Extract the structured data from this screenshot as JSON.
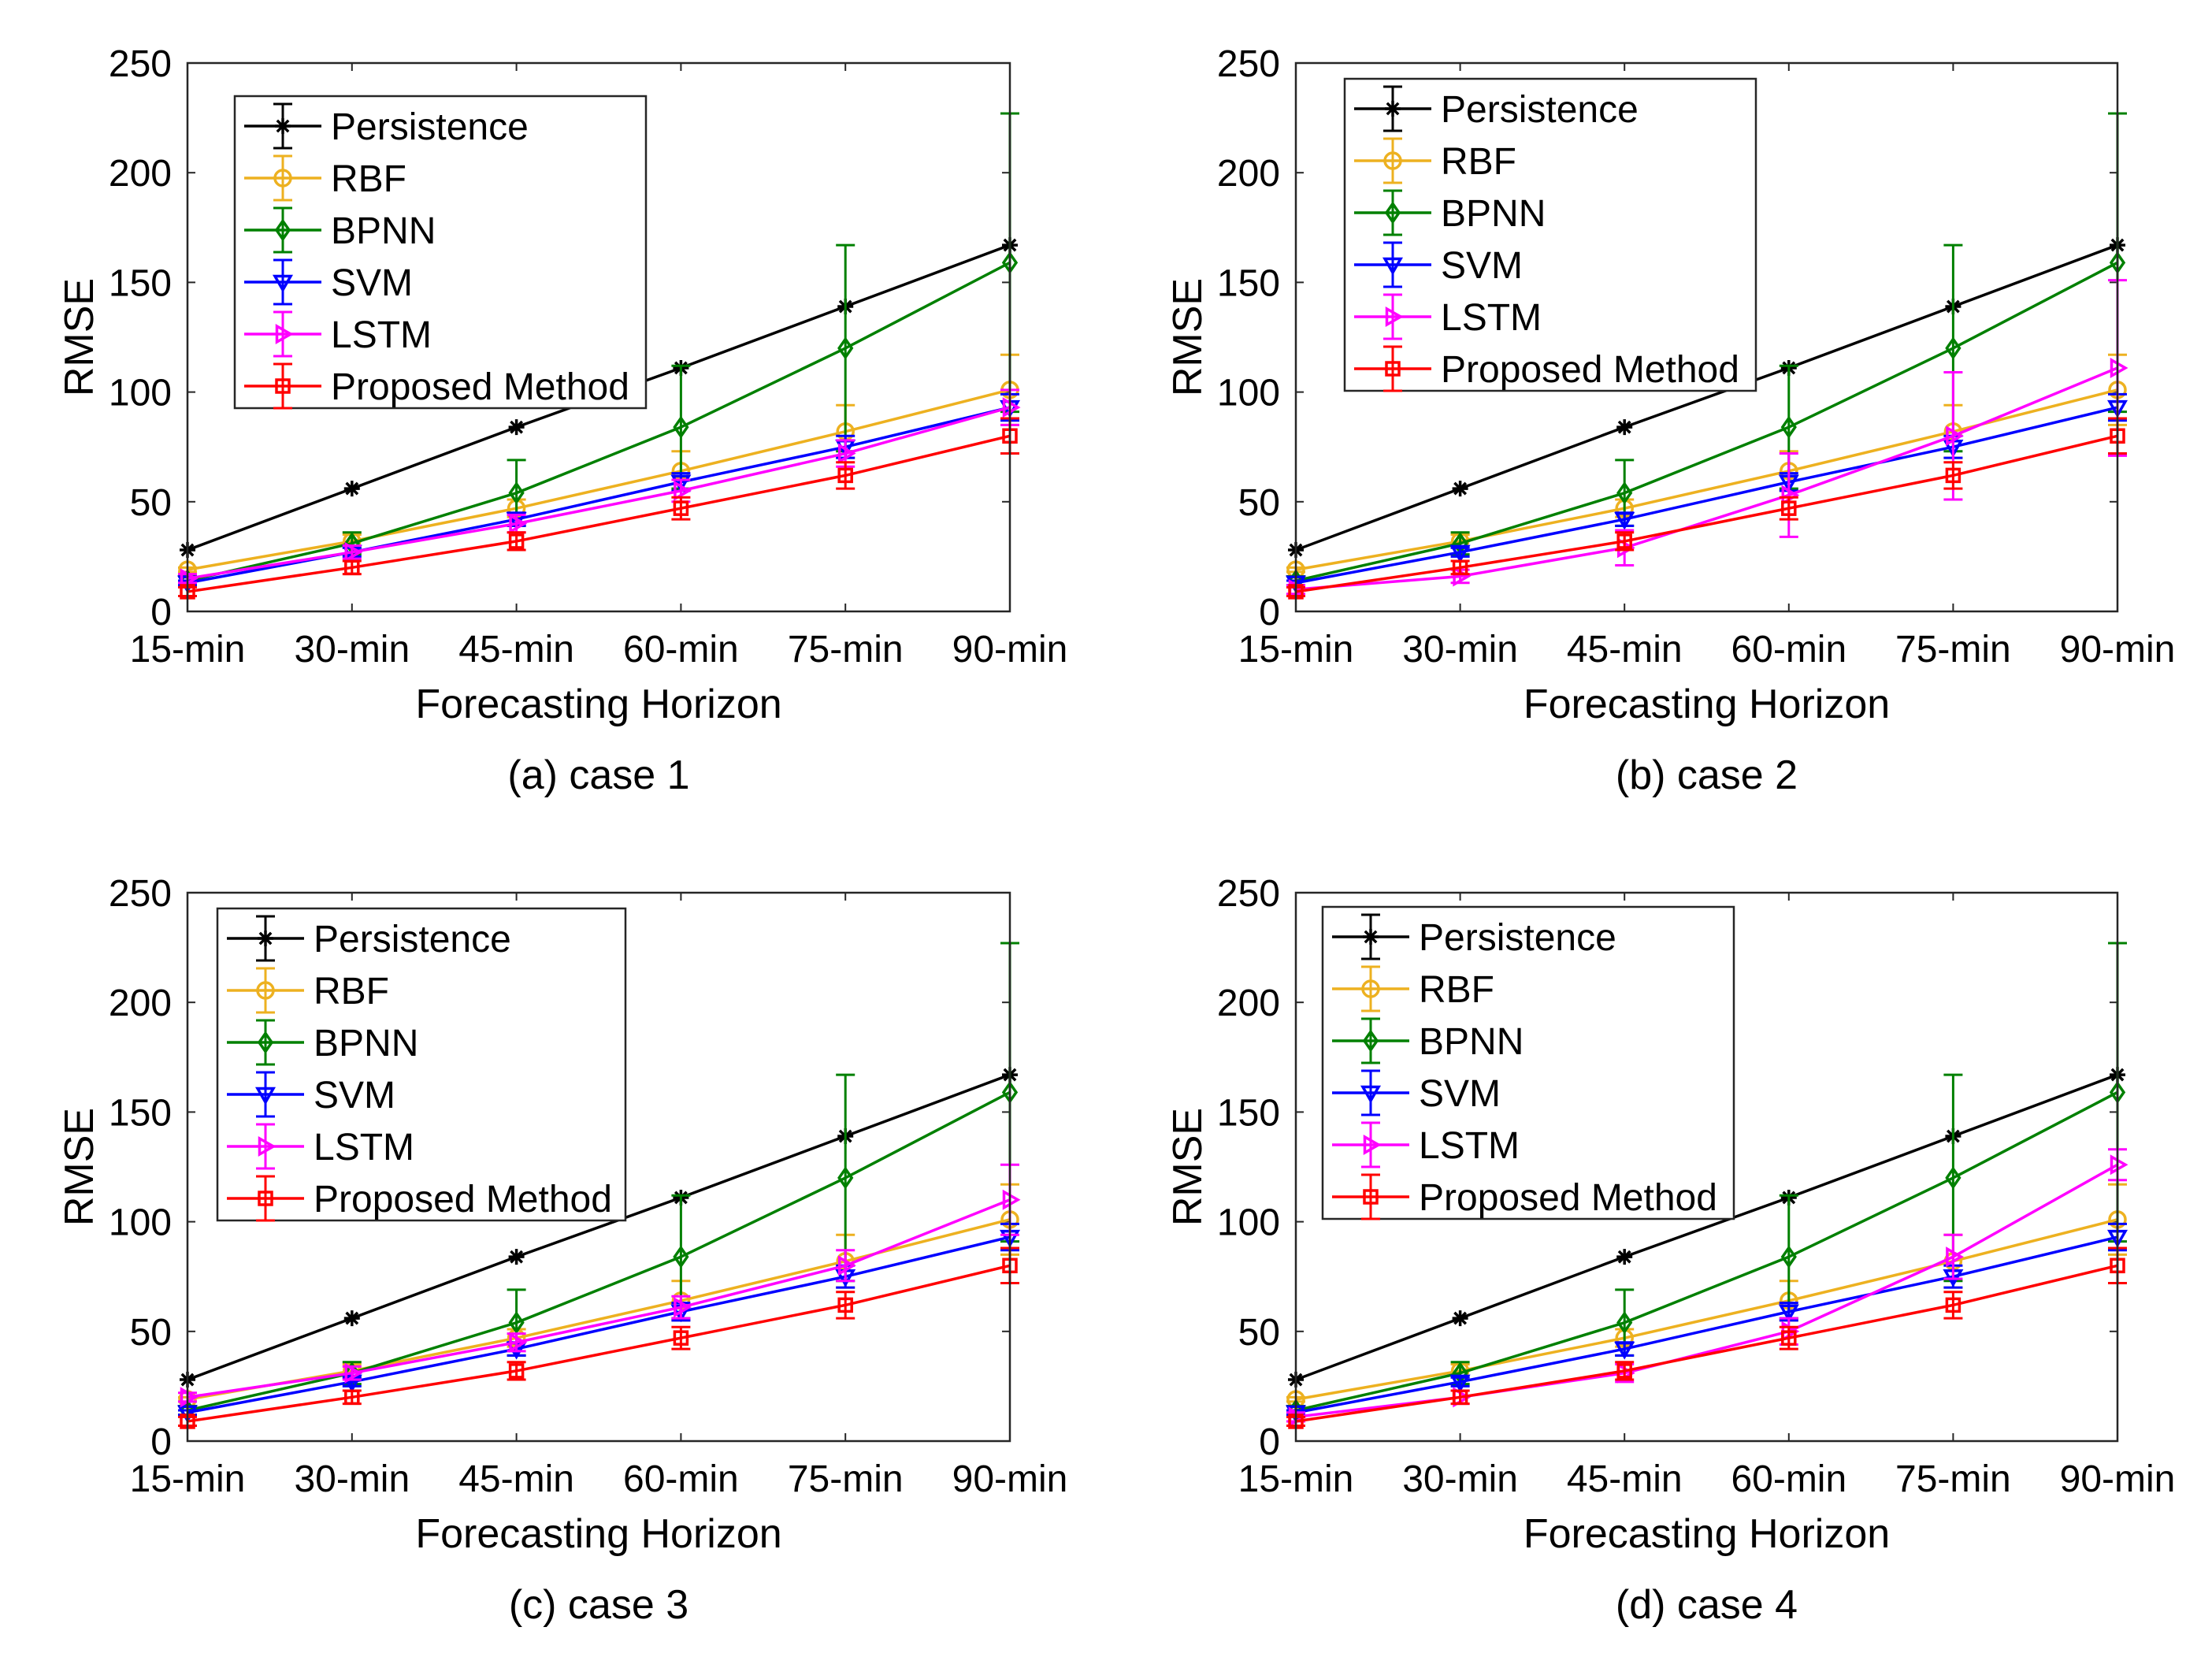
{
  "figure": {
    "panel_count": 4
  },
  "chart_data": [
    {
      "type": "line",
      "caption": "(a) case 1",
      "xlabel": "Forecasting Horizon",
      "ylabel": "RMSE",
      "categories": [
        "15-min",
        "30-min",
        "45-min",
        "60-min",
        "75-min",
        "90-min"
      ],
      "ylim": [
        0,
        250
      ],
      "yticks": [
        "0",
        "50",
        "100",
        "150",
        "200",
        "250"
      ],
      "legend_position": "top-left",
      "series": [
        {
          "name": "Persistence",
          "color": "#000000",
          "marker": "star",
          "values": [
            28,
            56,
            84,
            111,
            139,
            167
          ],
          "errors": [
            0,
            0,
            0,
            0,
            0,
            0
          ]
        },
        {
          "name": "RBF",
          "color": "#EDB120",
          "marker": "circle",
          "values": [
            19,
            32,
            47,
            64,
            82,
            101
          ],
          "errors": [
            1,
            3,
            4,
            9,
            12,
            16
          ]
        },
        {
          "name": "BPNN",
          "color": "#008000",
          "marker": "diamond",
          "values": [
            14,
            31,
            54,
            84,
            120,
            159
          ],
          "errors": [
            2,
            5,
            15,
            28,
            47,
            68
          ]
        },
        {
          "name": "SVM",
          "color": "#0000FF",
          "marker": "triangle-down",
          "values": [
            13,
            27,
            42,
            59,
            75,
            93
          ],
          "errors": [
            1,
            2,
            3,
            4,
            5,
            6
          ]
        },
        {
          "name": "LSTM",
          "color": "#FF00FF",
          "marker": "triangle-right",
          "values": [
            15,
            27,
            40,
            55,
            72,
            93
          ],
          "errors": [
            2,
            3,
            4,
            5,
            6,
            8
          ]
        },
        {
          "name": "Proposed Method",
          "color": "#FF0000",
          "marker": "square",
          "values": [
            9,
            20,
            32,
            47,
            62,
            80
          ],
          "errors": [
            2,
            3,
            4,
            5,
            6,
            8
          ]
        }
      ]
    },
    {
      "type": "line",
      "caption": "(b) case 2",
      "xlabel": "Forecasting Horizon",
      "ylabel": "RMSE",
      "categories": [
        "15-min",
        "30-min",
        "45-min",
        "60-min",
        "75-min",
        "90-min"
      ],
      "ylim": [
        0,
        250
      ],
      "yticks": [
        "0",
        "50",
        "100",
        "150",
        "200",
        "250"
      ],
      "legend_position": "top-left",
      "series": [
        {
          "name": "Persistence",
          "color": "#000000",
          "marker": "star",
          "values": [
            28,
            56,
            84,
            111,
            139,
            167
          ],
          "errors": [
            0,
            0,
            0,
            0,
            0,
            0
          ]
        },
        {
          "name": "RBF",
          "color": "#EDB120",
          "marker": "circle",
          "values": [
            19,
            32,
            47,
            64,
            82,
            101
          ],
          "errors": [
            1,
            3,
            4,
            9,
            12,
            16
          ]
        },
        {
          "name": "BPNN",
          "color": "#008000",
          "marker": "diamond",
          "values": [
            14,
            31,
            54,
            84,
            120,
            159
          ],
          "errors": [
            2,
            5,
            15,
            28,
            47,
            68
          ]
        },
        {
          "name": "SVM",
          "color": "#0000FF",
          "marker": "triangle-down",
          "values": [
            13,
            27,
            42,
            59,
            75,
            93
          ],
          "errors": [
            1,
            2,
            3,
            4,
            5,
            6
          ]
        },
        {
          "name": "LSTM",
          "color": "#FF00FF",
          "marker": "triangle-right",
          "values": [
            10,
            16,
            29,
            53,
            80,
            111
          ],
          "errors": [
            2,
            3,
            8,
            19,
            29,
            40
          ]
        },
        {
          "name": "Proposed Method",
          "color": "#FF0000",
          "marker": "square",
          "values": [
            9,
            20,
            32,
            47,
            62,
            80
          ],
          "errors": [
            2,
            3,
            4,
            5,
            6,
            8
          ]
        }
      ]
    },
    {
      "type": "line",
      "caption": "(c) case 3",
      "xlabel": "Forecasting Horizon",
      "ylabel": "RMSE",
      "categories": [
        "15-min",
        "30-min",
        "45-min",
        "60-min",
        "75-min",
        "90-min"
      ],
      "ylim": [
        0,
        250
      ],
      "yticks": [
        "0",
        "50",
        "100",
        "150",
        "200",
        "250"
      ],
      "legend_position": "top-left",
      "series": [
        {
          "name": "Persistence",
          "color": "#000000",
          "marker": "star",
          "values": [
            28,
            56,
            84,
            111,
            139,
            167
          ],
          "errors": [
            0,
            0,
            0,
            0,
            0,
            0
          ]
        },
        {
          "name": "RBF",
          "color": "#EDB120",
          "marker": "circle",
          "values": [
            19,
            32,
            47,
            64,
            82,
            101
          ],
          "errors": [
            1,
            3,
            4,
            9,
            12,
            16
          ]
        },
        {
          "name": "BPNN",
          "color": "#008000",
          "marker": "diamond",
          "values": [
            14,
            31,
            54,
            84,
            120,
            159
          ],
          "errors": [
            2,
            5,
            15,
            28,
            47,
            68
          ]
        },
        {
          "name": "SVM",
          "color": "#0000FF",
          "marker": "triangle-down",
          "values": [
            13,
            27,
            42,
            59,
            75,
            93
          ],
          "errors": [
            1,
            2,
            3,
            4,
            5,
            6
          ]
        },
        {
          "name": "LSTM",
          "color": "#FF00FF",
          "marker": "triangle-right",
          "values": [
            20,
            31,
            45,
            61,
            80,
            110
          ],
          "errors": [
            2,
            3,
            4,
            5,
            7,
            16
          ]
        },
        {
          "name": "Proposed Method",
          "color": "#FF0000",
          "marker": "square",
          "values": [
            9,
            20,
            32,
            47,
            62,
            80
          ],
          "errors": [
            2,
            3,
            4,
            5,
            6,
            8
          ]
        }
      ]
    },
    {
      "type": "line",
      "caption": "(d) case 4",
      "xlabel": "Forecasting Horizon",
      "ylabel": "RMSE",
      "categories": [
        "15-min",
        "30-min",
        "45-min",
        "60-min",
        "75-min",
        "90-min"
      ],
      "ylim": [
        0,
        250
      ],
      "yticks": [
        "0",
        "50",
        "100",
        "150",
        "200",
        "250"
      ],
      "legend_position": "top-left",
      "series": [
        {
          "name": "Persistence",
          "color": "#000000",
          "marker": "star",
          "values": [
            28,
            56,
            84,
            111,
            139,
            167
          ],
          "errors": [
            0,
            0,
            0,
            0,
            0,
            0
          ]
        },
        {
          "name": "RBF",
          "color": "#EDB120",
          "marker": "circle",
          "values": [
            19,
            32,
            47,
            64,
            82,
            101
          ],
          "errors": [
            1,
            3,
            4,
            9,
            12,
            16
          ]
        },
        {
          "name": "BPNN",
          "color": "#008000",
          "marker": "diamond",
          "values": [
            14,
            31,
            54,
            84,
            120,
            159
          ],
          "errors": [
            2,
            5,
            15,
            28,
            47,
            68
          ]
        },
        {
          "name": "SVM",
          "color": "#0000FF",
          "marker": "triangle-down",
          "values": [
            13,
            27,
            42,
            59,
            75,
            93
          ],
          "errors": [
            1,
            2,
            3,
            4,
            5,
            6
          ]
        },
        {
          "name": "LSTM",
          "color": "#FF00FF",
          "marker": "triangle-right",
          "values": [
            11,
            20,
            31,
            50,
            84,
            126
          ],
          "errors": [
            2,
            3,
            4,
            6,
            10,
            7
          ]
        },
        {
          "name": "Proposed Method",
          "color": "#FF0000",
          "marker": "square",
          "values": [
            9,
            20,
            32,
            47,
            62,
            80
          ],
          "errors": [
            2,
            3,
            4,
            5,
            6,
            8
          ]
        }
      ]
    }
  ]
}
